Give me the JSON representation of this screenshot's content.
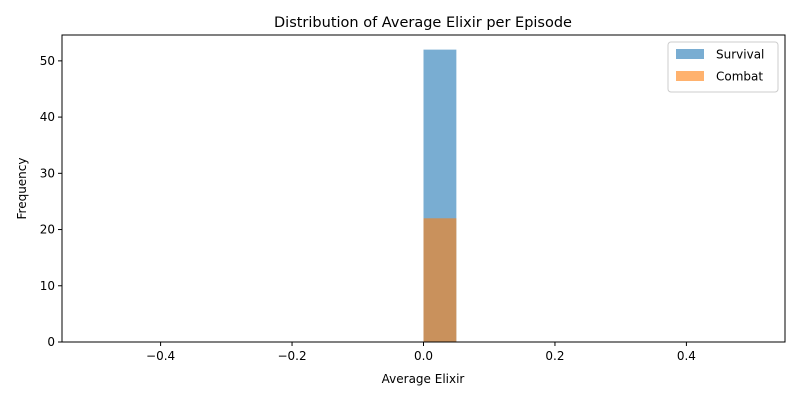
{
  "chart_data": {
    "type": "histogram",
    "title": "Distribution of Average Elixir per Episode",
    "xlabel": "Average Elixir",
    "ylabel": "Frequency",
    "xlim": [
      -0.55,
      0.55
    ],
    "ylim": [
      0,
      54.6
    ],
    "x_ticks": [
      -0.4,
      -0.2,
      0.0,
      0.2,
      0.4
    ],
    "x_tick_labels": [
      "−0.4",
      "−0.2",
      "0.0",
      "0.2",
      "0.4"
    ],
    "y_ticks": [
      0,
      10,
      20,
      30,
      40,
      50
    ],
    "y_tick_labels": [
      "0",
      "10",
      "20",
      "30",
      "40",
      "50"
    ],
    "bins": [
      -0.5,
      -0.45,
      -0.4,
      -0.35,
      -0.3,
      -0.25,
      -0.2,
      -0.15,
      -0.1,
      -0.05,
      0.0,
      0.05,
      0.1,
      0.15,
      0.2,
      0.25,
      0.3,
      0.35,
      0.4,
      0.45,
      0.5
    ],
    "grid": false,
    "legend_position": "top-right",
    "series": [
      {
        "name": "Survival",
        "color": "#1f77b4",
        "opacity": 0.6,
        "counts": [
          0,
          0,
          0,
          0,
          0,
          0,
          0,
          0,
          0,
          0,
          52,
          0,
          0,
          0,
          0,
          0,
          0,
          0,
          0,
          0
        ]
      },
      {
        "name": "Combat",
        "color": "#ff7f0e",
        "opacity": 0.6,
        "counts": [
          0,
          0,
          0,
          0,
          0,
          0,
          0,
          0,
          0,
          0,
          22,
          0,
          0,
          0,
          0,
          0,
          0,
          0,
          0,
          0
        ]
      }
    ]
  }
}
